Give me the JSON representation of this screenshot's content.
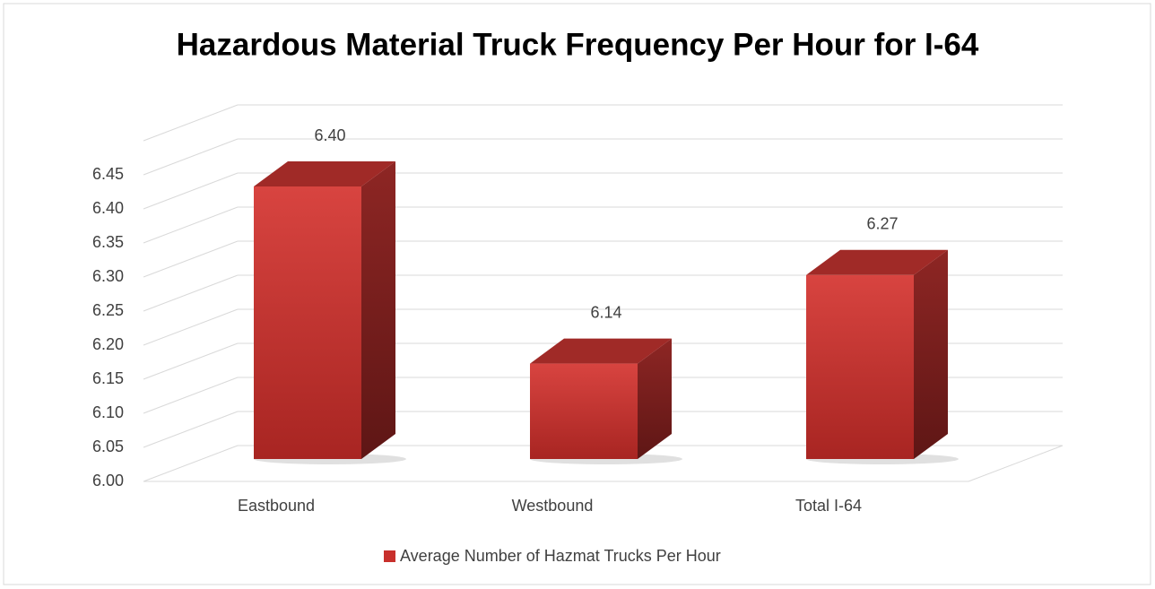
{
  "chart_data": {
    "type": "bar3d",
    "title": "Hazardous Material Truck Frequency Per Hour for I-64",
    "categories": [
      "Eastbound",
      "Westbound",
      "Total I-64"
    ],
    "series": [
      {
        "name": "Average Number of Hazmat Trucks Per Hour",
        "color": "#c8302c",
        "values": [
          6.4,
          6.14,
          6.27
        ],
        "value_labels": [
          "6.40",
          "6.14",
          "6.27"
        ]
      }
    ],
    "ylim": [
      6.0,
      6.5
    ],
    "yticks": [
      {
        "value": 6.0,
        "label": "6.00"
      },
      {
        "value": 6.05,
        "label": "6.05"
      },
      {
        "value": 6.1,
        "label": "6.10"
      },
      {
        "value": 6.15,
        "label": "6.15"
      },
      {
        "value": 6.2,
        "label": "6.20"
      },
      {
        "value": 6.25,
        "label": "6.25"
      },
      {
        "value": 6.3,
        "label": "6.30"
      },
      {
        "value": 6.35,
        "label": "6.35"
      },
      {
        "value": 6.4,
        "label": "6.40"
      },
      {
        "value": 6.45,
        "label": "6.45"
      }
    ],
    "grid": true
  }
}
